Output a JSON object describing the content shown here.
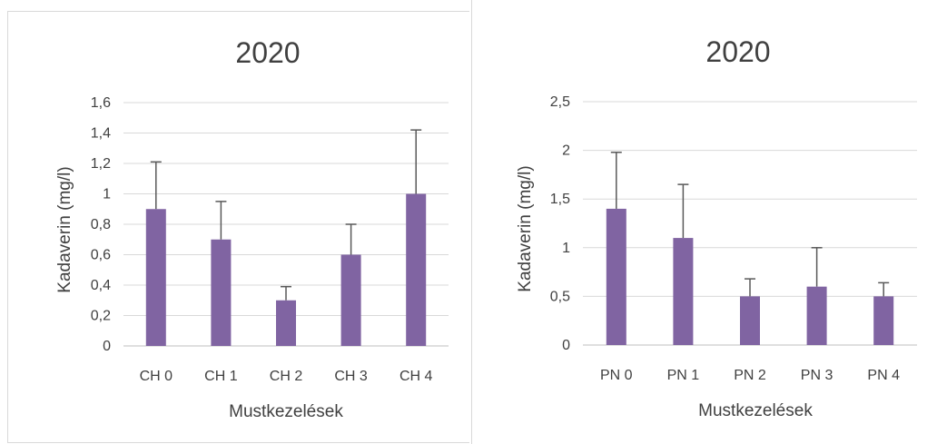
{
  "chart_data": [
    {
      "type": "bar",
      "title": "2020",
      "xlabel": "Mustkezelések",
      "ylabel": "Kadaverin (mg/l)",
      "categories": [
        "CH 0",
        "CH 1",
        "CH 2",
        "CH 3",
        "CH 4"
      ],
      "values": [
        0.9,
        0.7,
        0.3,
        0.6,
        1.0
      ],
      "error_upper": [
        1.21,
        0.95,
        0.39,
        0.8,
        1.42
      ],
      "ylim": [
        0,
        1.6
      ],
      "yticks": [
        "0",
        "0,2",
        "0,4",
        "0,6",
        "0,8",
        "1",
        "1,2",
        "1,4",
        "1,6"
      ],
      "grid": true,
      "bar_color": "#8064a2"
    },
    {
      "type": "bar",
      "title": "2020",
      "xlabel": "Mustkezelések",
      "ylabel": "Kadaverin (mg/l)",
      "categories": [
        "PN 0",
        "PN 1",
        "PN 2",
        "PN 3",
        "PN 4"
      ],
      "values": [
        1.4,
        1.1,
        0.5,
        0.6,
        0.5
      ],
      "error_upper": [
        1.98,
        1.65,
        0.68,
        1.0,
        0.64
      ],
      "ylim": [
        0,
        2.5
      ],
      "yticks": [
        "0",
        "0,5",
        "1",
        "1,5",
        "2",
        "2,5"
      ],
      "grid": true,
      "bar_color": "#8064a2"
    }
  ]
}
